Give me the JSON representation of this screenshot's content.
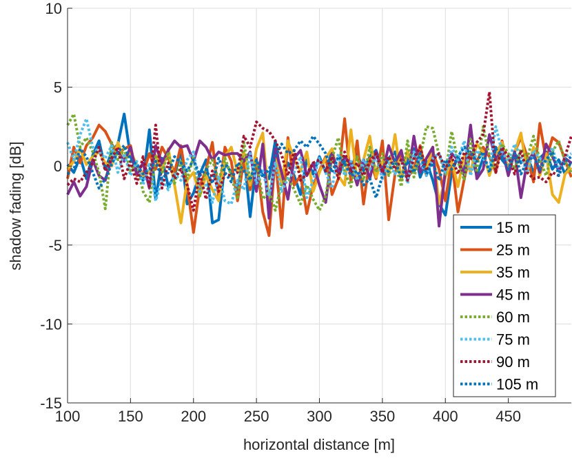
{
  "chart_data": {
    "type": "line",
    "title": "",
    "xlabel": "horizontal distance [m]",
    "ylabel": "shadow fading [dB]",
    "xlim": [
      100,
      500
    ],
    "ylim": [
      -15,
      10
    ],
    "xticks": [
      100,
      150,
      200,
      250,
      300,
      350,
      400,
      450
    ],
    "yticks": [
      -15,
      -10,
      -5,
      0,
      5,
      10
    ],
    "grid": true,
    "legend_position": "bottom-right",
    "x": [
      100,
      105,
      110,
      115,
      120,
      125,
      130,
      135,
      140,
      145,
      150,
      155,
      160,
      165,
      170,
      175,
      180,
      185,
      190,
      195,
      200,
      205,
      210,
      215,
      220,
      225,
      230,
      235,
      240,
      245,
      250,
      255,
      260,
      265,
      270,
      275,
      280,
      285,
      290,
      295,
      300,
      305,
      310,
      315,
      320,
      325,
      330,
      335,
      340,
      345,
      350,
      355,
      360,
      365,
      370,
      375,
      380,
      385,
      390,
      395,
      400,
      405,
      410,
      415,
      420,
      425,
      430,
      435,
      440,
      445,
      450,
      455,
      460,
      465,
      470,
      475,
      480,
      485,
      490,
      495,
      500
    ],
    "series": [
      {
        "name": "15 m",
        "color": "#0072BD",
        "style": "solid",
        "values": [
          0.1,
          -0.4,
          0.6,
          -0.8,
          0.7,
          1.6,
          -0.2,
          0.9,
          1.4,
          3.3,
          0.6,
          -0.3,
          -0.9,
          2.3,
          -2.1,
          0.5,
          -1.3,
          -0.6,
          1.0,
          -2.4,
          -1.7,
          -0.5,
          0.4,
          -3.6,
          -3.4,
          0.2,
          -0.4,
          -1.5,
          0.8,
          -3.2,
          0.3,
          -0.6,
          -0.8,
          1.6,
          -0.9,
          0.2,
          -0.6,
          -1.8,
          0.4,
          -0.5,
          0.6,
          -0.4,
          1.0,
          -0.7,
          0.3,
          -0.1,
          0.8,
          -0.3,
          0.6,
          1.0,
          -0.2,
          0.5,
          0.9,
          -0.6,
          0.4,
          1.1,
          -0.7,
          0.3,
          -0.9,
          -2.4,
          -3.1,
          -0.4,
          0.6,
          -0.2,
          0.9,
          -0.6,
          0.5,
          -0.3,
          1.2,
          0.4,
          -0.1,
          0.8,
          0.2,
          0.6,
          -0.4,
          0.5,
          0.9,
          -0.2,
          0.4,
          -0.5,
          0.3
        ]
      },
      {
        "name": "25 m",
        "color": "#D95319",
        "style": "solid",
        "values": [
          -0.8,
          1.2,
          0.2,
          1.3,
          1.8,
          2.6,
          2.2,
          1.4,
          0.8,
          1.1,
          1.3,
          -0.6,
          -0.5,
          0.8,
          -0.2,
          1.2,
          0.5,
          -0.4,
          1.3,
          -1.2,
          -4.2,
          -1.3,
          -0.2,
          1.5,
          -1.9,
          1.2,
          0.3,
          -2.2,
          0.4,
          -1.5,
          0.5,
          -2.9,
          -4.4,
          0.6,
          -3.9,
          1.8,
          -1.2,
          -0.6,
          -3.0,
          -1.2,
          -0.3,
          0.6,
          -1.8,
          -0.8,
          3.0,
          -1.0,
          1.6,
          -2.4,
          0.5,
          -0.8,
          1.6,
          -3.4,
          -0.5,
          0.9,
          -0.7,
          -0.2,
          1.3,
          -0.6,
          0.9,
          -0.2,
          -2.2,
          0.4,
          -2.9,
          -0.8,
          0.8,
          0.3,
          1.2,
          0.6,
          -0.4,
          1.6,
          -0.5,
          0.9,
          1.8,
          0.6,
          -1.0,
          2.7,
          0.4,
          1.8,
          1.5,
          0.4,
          -0.7
        ]
      },
      {
        "name": "35 m",
        "color": "#EDB120",
        "style": "solid",
        "values": [
          -0.2,
          0.3,
          1.1,
          0.1,
          0.6,
          0.9,
          0.2,
          0.0,
          1.5,
          0.4,
          0.9,
          0.1,
          -0.6,
          -0.4,
          0.7,
          -0.3,
          1.1,
          -1.2,
          -3.6,
          -0.9,
          -0.4,
          -1.9,
          -0.6,
          -1.5,
          -2.2,
          0.6,
          1.2,
          -0.4,
          0.9,
          -1.2,
          1.1,
          2.1,
          -2.4,
          0.8,
          -1.2,
          1.6,
          0.4,
          -0.3,
          0.9,
          -1.6,
          -0.4,
          0.5,
          1.1,
          -0.6,
          -1.2,
          2.3,
          -0.9,
          0.4,
          1.9,
          -0.7,
          0.3,
          -0.5,
          2.0,
          -0.9,
          1.0,
          -0.4,
          0.6,
          -0.2,
          1.2,
          -2.4,
          -0.7,
          0.4,
          -1.3,
          0.7,
          -0.4,
          1.4,
          0.9,
          -0.6,
          0.8,
          1.5,
          -0.3,
          0.9,
          2.1,
          -0.4,
          1.2,
          -0.6,
          0.8,
          -1.8,
          -2.3,
          -0.5,
          -0.1
        ]
      },
      {
        "name": "45 m",
        "color": "#7E2F8E",
        "style": "solid",
        "values": [
          -1.8,
          -1.0,
          -1.9,
          -1.3,
          0.4,
          -0.6,
          -0.9,
          0.5,
          0.9,
          0.3,
          1.2,
          -0.5,
          0.2,
          -1.4,
          1.3,
          0.2,
          1.0,
          1.6,
          1.2,
          1.3,
          0.3,
          1.6,
          1.2,
          0.4,
          0.9,
          0.7,
          0.8,
          0.8,
          0.3,
          0.9,
          -1.6,
          1.4,
          -3.3,
          1.1,
          -0.4,
          -2.1,
          0.5,
          1.0,
          -0.6,
          0.2,
          -1.2,
          -2.3,
          0.8,
          -0.4,
          0.6,
          0.1,
          -1.2,
          0.4,
          -0.8,
          0.9,
          -0.5,
          1.3,
          0.2,
          1.0,
          -0.9,
          1.9,
          -0.4,
          0.5,
          1.2,
          -3.8,
          -0.2,
          0.8,
          0.4,
          -0.6,
          2.6,
          -0.8,
          -0.2,
          2.0,
          0.4,
          1.1,
          -0.6,
          0.9,
          -2.0,
          0.3,
          0.8,
          -0.4,
          1.4,
          0.6,
          -0.3,
          0.5,
          0.2
        ]
      },
      {
        "name": "60 m",
        "color": "#77AC30",
        "style": "dotted",
        "values": [
          2.6,
          3.3,
          1.2,
          1.8,
          0.9,
          -0.4,
          -2.7,
          1.5,
          0.4,
          1.1,
          -0.3,
          0.2,
          -1.6,
          -2.3,
          0.6,
          -0.4,
          0.9,
          -1.1,
          0.3,
          -0.8,
          0.6,
          -1.9,
          -0.2,
          0.4,
          -0.9,
          0.5,
          -0.6,
          -2.1,
          1.5,
          -0.9,
          0.4,
          -2.1,
          -1.6,
          -2.8,
          -1.1,
          -0.7,
          -1.5,
          -2.4,
          -1.2,
          -2.1,
          -2.8,
          -1.9,
          0.5,
          1.8,
          -0.4,
          -1.3,
          0.6,
          -0.9,
          1.2,
          -0.4,
          0.8,
          -0.6,
          0.3,
          -1.3,
          1.6,
          -0.7,
          0.6,
          2.5,
          2.4,
          0.7,
          -0.5,
          2.2,
          0.3,
          -0.9,
          1.7,
          -0.4,
          2.5,
          0.6,
          -0.3,
          1.4,
          0.8,
          -0.2,
          1.1,
          0.5,
          1.9,
          0.4,
          -0.6,
          0.9,
          1.6,
          0.3,
          -0.4
        ]
      },
      {
        "name": "75 m",
        "color": "#4DBEEE",
        "style": "dotted",
        "values": [
          1.5,
          0.4,
          2.0,
          3.0,
          1.2,
          0.9,
          0.5,
          1.3,
          -0.4,
          0.8,
          -0.6,
          0.3,
          -1.2,
          0.2,
          -2.2,
          -0.8,
          -1.5,
          -0.5,
          -0.9,
          0.4,
          0.9,
          -1.6,
          -1.2,
          -2.3,
          -0.6,
          -2.2,
          -2.4,
          -0.9,
          -1.5,
          0.8,
          -1.1,
          -0.3,
          -1.9,
          0.2,
          -1.6,
          -0.8,
          -0.4,
          0.6,
          -2.0,
          -0.9,
          0.5,
          -0.4,
          -1.4,
          0.8,
          -0.6,
          0.3,
          -0.9,
          0.4,
          -0.2,
          0.6,
          -0.8,
          0.2,
          -0.5,
          0.4,
          -1.1,
          0.9,
          0.3,
          -0.6,
          0.5,
          0.8,
          -0.4,
          1.2,
          0.4,
          1.6,
          -0.6,
          1.0,
          0.5,
          -0.2,
          2.5,
          0.9,
          0.3,
          1.4,
          0.6,
          -0.4,
          1.0,
          0.5,
          0.2,
          1.2,
          -0.3,
          0.6,
          0.8
        ]
      },
      {
        "name": "90 m",
        "color": "#A2142F",
        "style": "dotted",
        "values": [
          -1.2,
          -0.8,
          -1.0,
          -0.4,
          0.2,
          1.2,
          -0.3,
          0.5,
          1.2,
          -0.8,
          0.3,
          -1.1,
          0.6,
          -1.3,
          2.6,
          -1.4,
          0.2,
          -0.8,
          -0.2,
          -1.2,
          -2.8,
          -0.4,
          -2.1,
          -0.3,
          -1.6,
          -0.5,
          -0.6,
          -0.4,
          1.9,
          1.2,
          2.8,
          2.4,
          2.2,
          1.6,
          0.7,
          -0.6,
          1.0,
          -0.9,
          -0.5,
          0.2,
          0.4,
          -0.3,
          0.6,
          -0.8,
          0.9,
          -0.4,
          0.2,
          -0.6,
          0.3,
          0.8,
          -0.4,
          0.6,
          -0.2,
          0.4,
          -0.9,
          0.5,
          1.2,
          -0.3,
          0.4,
          0.8,
          -0.2,
          0.6,
          -0.5,
          0.9,
          0.4,
          1.5,
          2.0,
          4.7,
          -0.4,
          1.2,
          0.6,
          -0.5,
          1.0,
          -0.4,
          -0.8,
          -0.7,
          -1.0,
          -0.4,
          -0.6,
          0.6,
          1.9
        ]
      },
      {
        "name": "105 m",
        "color": "#0072BD",
        "style": "dotted",
        "values": [
          -0.5,
          -0.2,
          1.1,
          0.6,
          -0.4,
          -1.4,
          -0.8,
          0.1,
          0.9,
          1.3,
          0.4,
          0.1,
          -0.5,
          -0.2,
          0.3,
          -0.8,
          -0.4,
          0.6,
          0.2,
          -0.3,
          0.4,
          -0.6,
          -0.2,
          -1.1,
          0.5,
          -0.4,
          -1.0,
          0.2,
          -0.3,
          -0.9,
          0.4,
          -0.7,
          -0.2,
          0.6,
          1.4,
          0.8,
          1.0,
          1.6,
          1.2,
          1.9,
          1.4,
          0.8,
          -0.4,
          0.6,
          0.2,
          -0.6,
          -0.3,
          -1.2,
          -0.8,
          -2.0,
          -0.6,
          -0.3,
          0.4,
          -0.8,
          0.3,
          -0.4,
          0.8,
          -0.5,
          0.2,
          -0.9,
          0.4,
          -0.2,
          0.6,
          1.2,
          0.8,
          0.3,
          0.9,
          -0.4,
          1.1,
          0.6,
          -0.2,
          0.8,
          -0.5,
          0.3,
          0.6,
          -0.2,
          0.4,
          0.9,
          -0.6,
          0.3,
          0.6
        ]
      }
    ]
  }
}
